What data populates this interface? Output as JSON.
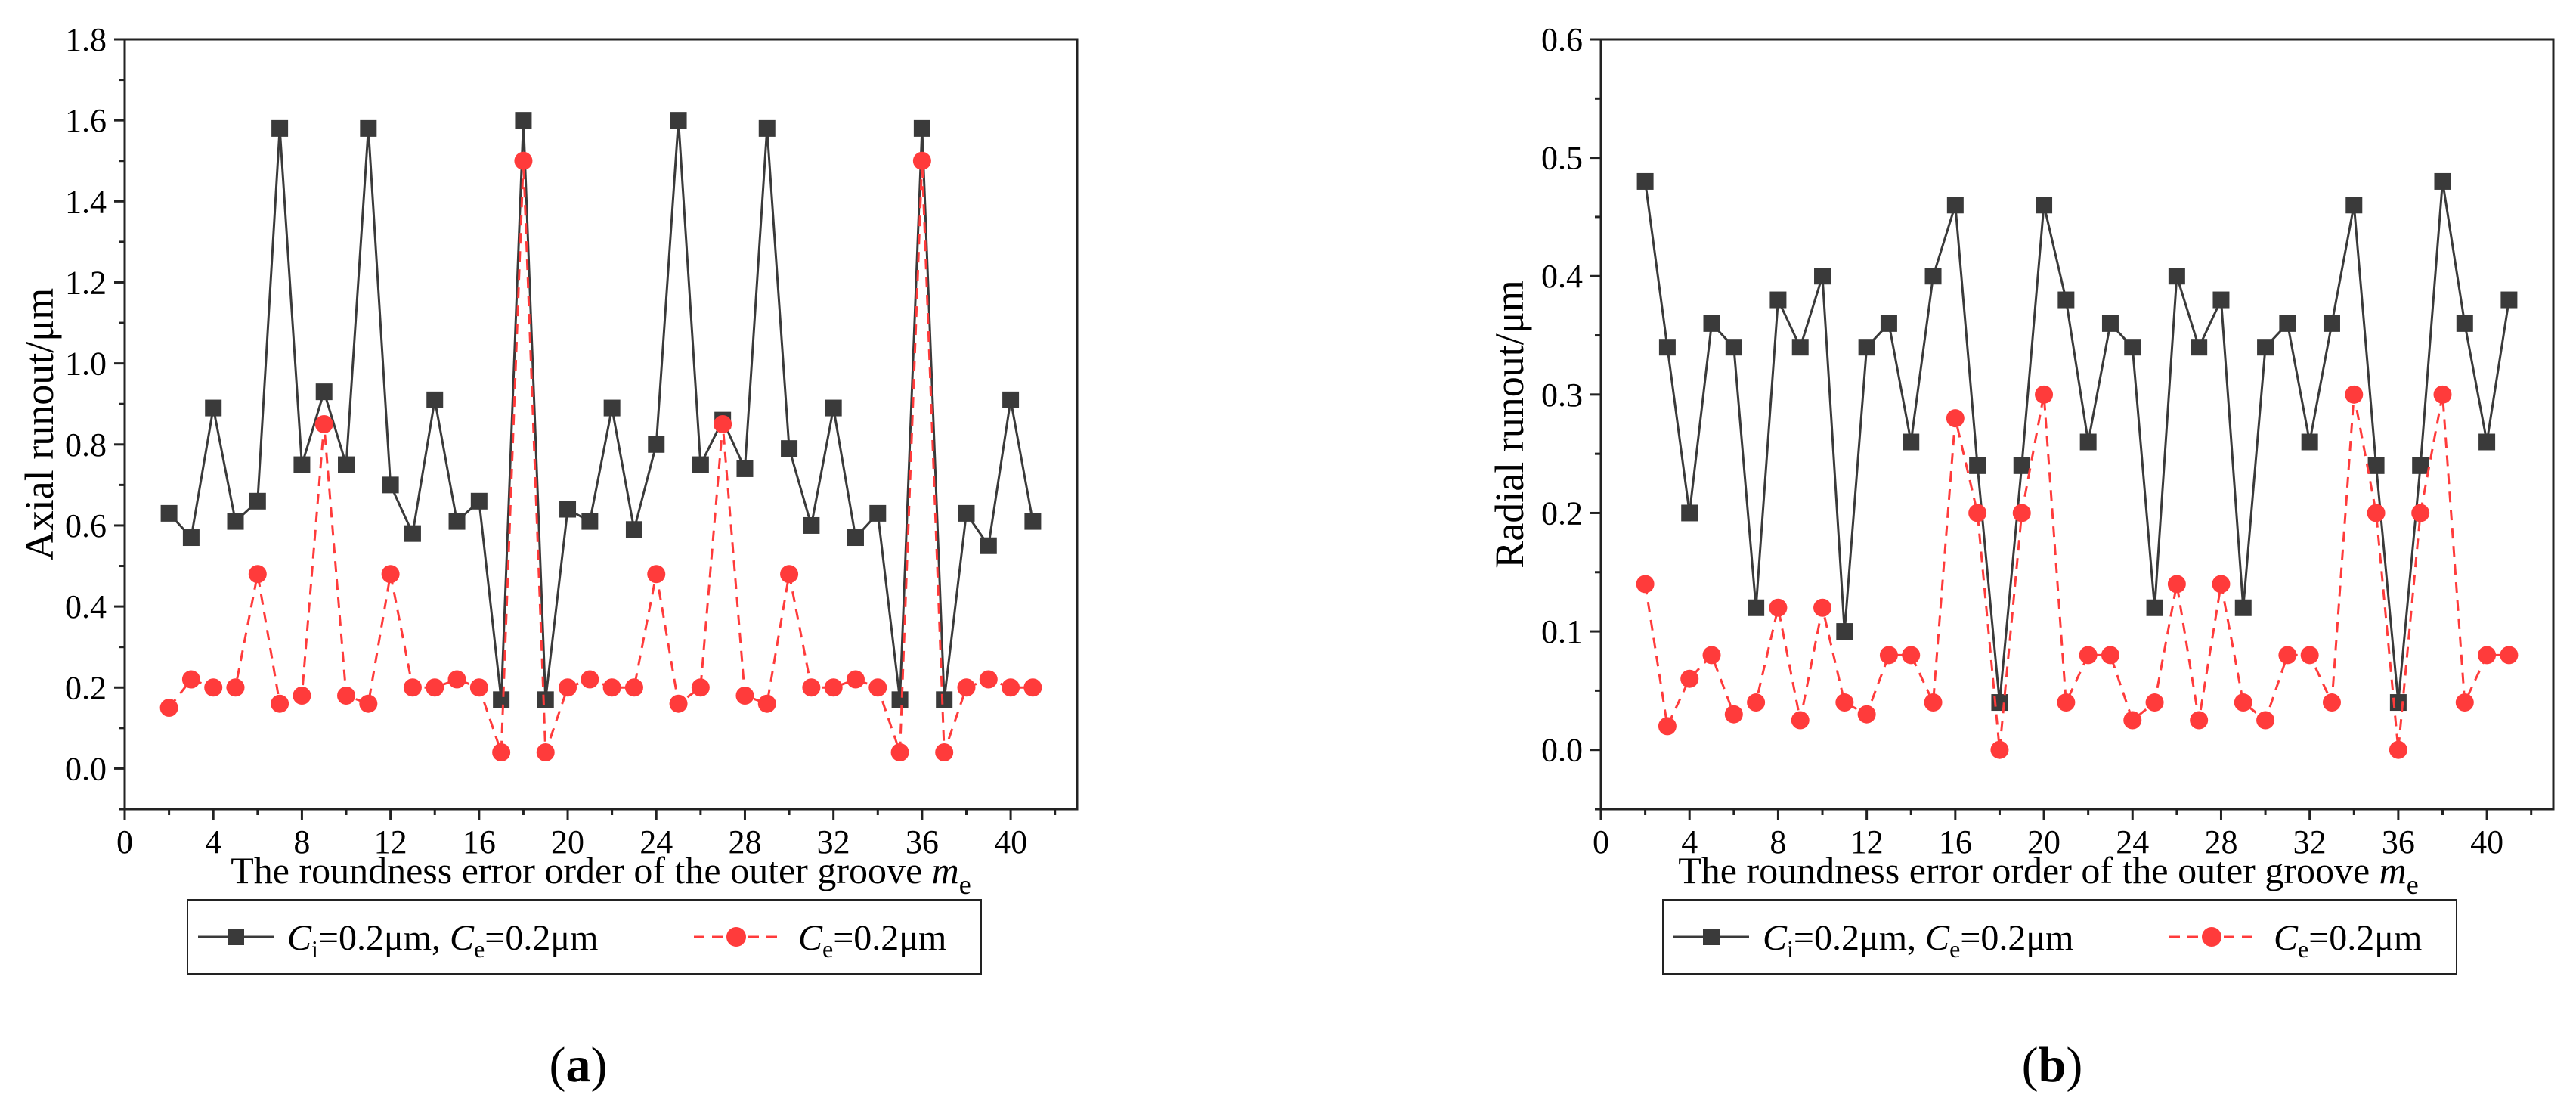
{
  "charts": [
    {
      "id": "a",
      "panel_label": "(a)",
      "ylabel": "Axial runout/μm",
      "xlabel_prefix": "The roundness error order of the outer groove ",
      "xlabel_var": "m",
      "xlabel_sub": "e"
    },
    {
      "id": "b",
      "panel_label": "(b)",
      "ylabel": "Radial runout/μm",
      "xlabel_prefix": "The roundness error order of the outer groove ",
      "xlabel_var": "m",
      "xlabel_sub": "e"
    }
  ],
  "legend": {
    "series1": {
      "c1": "C",
      "c1_sub": "i",
      "c1_val": "=0.2μm, ",
      "c2": "C",
      "c2_sub": "e",
      "c2_val": "=0.2μm"
    },
    "series2": {
      "c": "C",
      "c_sub": "e",
      "c_val": "=0.2μm"
    }
  },
  "colors": {
    "series1": "#3a3a3a",
    "series2": "#ff3b3b",
    "axis": "#222222"
  },
  "chart_data": [
    {
      "type": "line",
      "title": "",
      "xlabel": "The roundness error order of the outer groove m_e",
      "ylabel": "Axial runout/μm",
      "xlim": [
        0,
        43
      ],
      "ylim": [
        -0.1,
        1.8
      ],
      "xticks": [
        0,
        4,
        8,
        12,
        16,
        20,
        24,
        28,
        32,
        36,
        40
      ],
      "yticks": [
        0.0,
        0.2,
        0.4,
        0.6,
        0.8,
        1.0,
        1.2,
        1.4,
        1.6,
        1.8
      ],
      "ytick_decimals": 1,
      "x": [
        2,
        3,
        4,
        5,
        6,
        7,
        8,
        9,
        10,
        11,
        12,
        13,
        14,
        15,
        16,
        17,
        18,
        19,
        20,
        21,
        22,
        23,
        24,
        25,
        26,
        27,
        28,
        29,
        30,
        31,
        32,
        33,
        34,
        35,
        36,
        37,
        38,
        39,
        40,
        41
      ],
      "series": [
        {
          "name": "Ci=0.2μm, Ce=0.2μm",
          "marker": "square",
          "style": "solid",
          "values": [
            0.63,
            0.57,
            0.89,
            0.61,
            0.66,
            1.58,
            0.75,
            0.93,
            0.75,
            1.58,
            0.7,
            0.58,
            0.91,
            0.61,
            0.66,
            0.17,
            1.6,
            0.17,
            0.64,
            0.61,
            0.89,
            0.59,
            0.8,
            1.6,
            0.75,
            0.86,
            0.74,
            1.58,
            0.79,
            0.6,
            0.89,
            0.57,
            0.63,
            0.17,
            1.58,
            0.17,
            0.63,
            0.55,
            0.91,
            0.61
          ]
        },
        {
          "name": "Ce=0.2μm",
          "marker": "circle",
          "style": "dashed",
          "values": [
            0.15,
            0.22,
            0.2,
            0.2,
            0.48,
            0.16,
            0.18,
            0.85,
            0.18,
            0.16,
            0.48,
            0.2,
            0.2,
            0.22,
            0.2,
            0.04,
            1.5,
            0.04,
            0.2,
            0.22,
            0.2,
            0.2,
            0.48,
            0.16,
            0.2,
            0.85,
            0.18,
            0.16,
            0.48,
            0.2,
            0.2,
            0.22,
            0.2,
            0.04,
            1.5,
            0.04,
            0.2,
            0.22,
            0.2,
            0.2
          ]
        }
      ],
      "legend": "bottom"
    },
    {
      "type": "line",
      "title": "",
      "xlabel": "The roundness error order of the outer groove m_e",
      "ylabel": "Radial runout/μm",
      "xlim": [
        0,
        43
      ],
      "ylim": [
        -0.05,
        0.6
      ],
      "xticks": [
        0,
        4,
        8,
        12,
        16,
        20,
        24,
        28,
        32,
        36,
        40
      ],
      "yticks": [
        0.0,
        0.1,
        0.2,
        0.3,
        0.4,
        0.5,
        0.6
      ],
      "ytick_decimals": 1,
      "x": [
        2,
        3,
        4,
        5,
        6,
        7,
        8,
        9,
        10,
        11,
        12,
        13,
        14,
        15,
        16,
        17,
        18,
        19,
        20,
        21,
        22,
        23,
        24,
        25,
        26,
        27,
        28,
        29,
        30,
        31,
        32,
        33,
        34,
        35,
        36,
        37,
        38,
        39,
        40,
        41
      ],
      "series": [
        {
          "name": "Ci=0.2μm, Ce=0.2μm",
          "marker": "square",
          "style": "solid",
          "values": [
            0.48,
            0.34,
            0.2,
            0.36,
            0.34,
            0.12,
            0.38,
            0.34,
            0.4,
            0.1,
            0.34,
            0.36,
            0.26,
            0.4,
            0.46,
            0.24,
            0.04,
            0.24,
            0.46,
            0.38,
            0.26,
            0.36,
            0.34,
            0.12,
            0.4,
            0.34,
            0.38,
            0.12,
            0.34,
            0.36,
            0.26,
            0.36,
            0.46,
            0.24,
            0.04,
            0.24,
            0.48,
            0.36,
            0.26,
            0.38
          ]
        },
        {
          "name": "Ce=0.2μm",
          "marker": "circle",
          "style": "dashed",
          "values": [
            0.14,
            0.02,
            0.06,
            0.08,
            0.03,
            0.04,
            0.12,
            0.025,
            0.12,
            0.04,
            0.03,
            0.08,
            0.08,
            0.04,
            0.28,
            0.2,
            0.0,
            0.2,
            0.3,
            0.04,
            0.08,
            0.08,
            0.025,
            0.04,
            0.14,
            0.025,
            0.14,
            0.04,
            0.025,
            0.08,
            0.08,
            0.04,
            0.3,
            0.2,
            0.0,
            0.2,
            0.3,
            0.04,
            0.08,
            0.08
          ]
        }
      ],
      "legend": "bottom"
    }
  ]
}
